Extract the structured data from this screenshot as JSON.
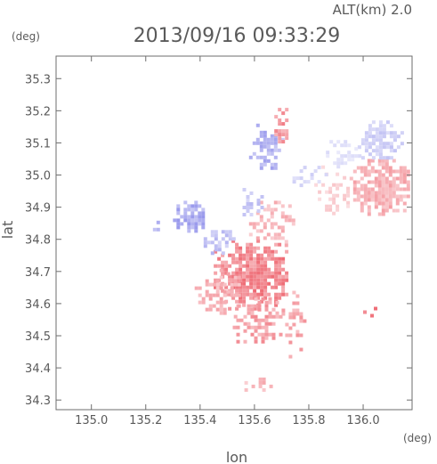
{
  "chart_data": {
    "type": "heatmap",
    "title": "2013/09/16 09:33:29",
    "altitude_label": "ALT(km) 2.0",
    "xlabel": "lon",
    "ylabel": "lat",
    "xunit": "(deg)",
    "yunit": "(deg)",
    "xlim": [
      134.87,
      136.18
    ],
    "ylim": [
      34.27,
      35.37
    ],
    "xticks": [
      "135.0",
      "135.2",
      "135.4",
      "135.6",
      "135.8",
      "136.0"
    ],
    "xtick_values": [
      135.0,
      135.2,
      135.4,
      135.6,
      135.8,
      136.0
    ],
    "yticks": [
      "34.3",
      "34.4",
      "34.5",
      "34.6",
      "34.7",
      "34.8",
      "34.9",
      "35.0",
      "35.1",
      "35.2",
      "35.3"
    ],
    "ytick_values": [
      34.3,
      34.4,
      34.5,
      34.6,
      34.7,
      34.8,
      34.9,
      35.0,
      35.1,
      35.2,
      35.3
    ],
    "colors": {
      "positive": "#ee6670",
      "negative": "#7a7ae6",
      "neutral": "#f2dede",
      "axis": "#6e6e6e",
      "text": "#5a5a5a"
    },
    "echo_regions": [
      {
        "name": "main-south-positive",
        "lon": [
          135.45,
          135.72
        ],
        "lat": [
          34.58,
          34.8
        ],
        "sign": "positive",
        "density": 0.85,
        "intensity": 0.75
      },
      {
        "name": "central-south-positive",
        "lon": [
          135.52,
          135.7
        ],
        "lat": [
          34.47,
          34.62
        ],
        "sign": "positive",
        "density": 0.55,
        "intensity": 0.6
      },
      {
        "name": "southwest-positive",
        "lon": [
          135.38,
          135.55
        ],
        "lat": [
          34.56,
          34.72
        ],
        "sign": "positive",
        "density": 0.45,
        "intensity": 0.5
      },
      {
        "name": "southeast-scatter",
        "lon": [
          135.7,
          135.78
        ],
        "lat": [
          34.44,
          34.64
        ],
        "sign": "positive",
        "density": 0.35,
        "intensity": 0.55
      },
      {
        "name": "center-mixed",
        "lon": [
          135.58,
          135.74
        ],
        "lat": [
          34.78,
          34.92
        ],
        "sign": "positive",
        "density": 0.5,
        "intensity": 0.45
      },
      {
        "name": "east-pink-area",
        "lon": [
          135.95,
          136.17
        ],
        "lat": [
          34.87,
          35.05
        ],
        "sign": "positive",
        "density": 0.8,
        "intensity": 0.5
      },
      {
        "name": "east-light-area",
        "lon": [
          135.82,
          135.95
        ],
        "lat": [
          34.88,
          35.03
        ],
        "sign": "positive",
        "density": 0.45,
        "intensity": 0.3
      },
      {
        "name": "northeast-blue",
        "lon": [
          135.98,
          136.14
        ],
        "lat": [
          35.05,
          35.17
        ],
        "sign": "negative",
        "density": 0.75,
        "intensity": 0.35
      },
      {
        "name": "northeast-light-blue",
        "lon": [
          135.85,
          136.0
        ],
        "lat": [
          35.03,
          35.12
        ],
        "sign": "negative",
        "density": 0.45,
        "intensity": 0.22
      },
      {
        "name": "northwest-blue-cluster",
        "lon": [
          135.3,
          135.43
        ],
        "lat": [
          34.83,
          34.92
        ],
        "sign": "negative",
        "density": 0.85,
        "intensity": 0.6
      },
      {
        "name": "north-blue-strip",
        "lon": [
          135.58,
          135.7
        ],
        "lat": [
          35.02,
          35.16
        ],
        "sign": "negative",
        "density": 0.6,
        "intensity": 0.55
      },
      {
        "name": "north-red-strip",
        "lon": [
          135.66,
          135.72
        ],
        "lat": [
          35.1,
          35.22
        ],
        "sign": "positive",
        "density": 0.45,
        "intensity": 0.65
      },
      {
        "name": "mid-north-blue",
        "lon": [
          135.53,
          135.64
        ],
        "lat": [
          34.88,
          34.96
        ],
        "sign": "negative",
        "density": 0.4,
        "intensity": 0.4
      },
      {
        "name": "mid-blue-patch",
        "lon": [
          135.4,
          135.52
        ],
        "lat": [
          34.76,
          34.84
        ],
        "sign": "negative",
        "density": 0.55,
        "intensity": 0.45
      },
      {
        "name": "far-south-strip",
        "lon": [
          135.55,
          135.67
        ],
        "lat": [
          34.33,
          34.37
        ],
        "sign": "positive",
        "density": 0.5,
        "intensity": 0.45
      },
      {
        "name": "far-west-specks",
        "lon": [
          135.2,
          135.25
        ],
        "lat": [
          34.8,
          34.88
        ],
        "sign": "negative",
        "density": 0.3,
        "intensity": 0.5
      },
      {
        "name": "north-center-mixed",
        "lon": [
          135.74,
          135.86
        ],
        "lat": [
          34.96,
          35.04
        ],
        "sign": "negative",
        "density": 0.25,
        "intensity": 0.3
      },
      {
        "name": "south-east-dots",
        "lon": [
          136.0,
          136.05
        ],
        "lat": [
          34.55,
          34.59
        ],
        "sign": "positive",
        "density": 0.55,
        "intensity": 0.8
      }
    ]
  }
}
